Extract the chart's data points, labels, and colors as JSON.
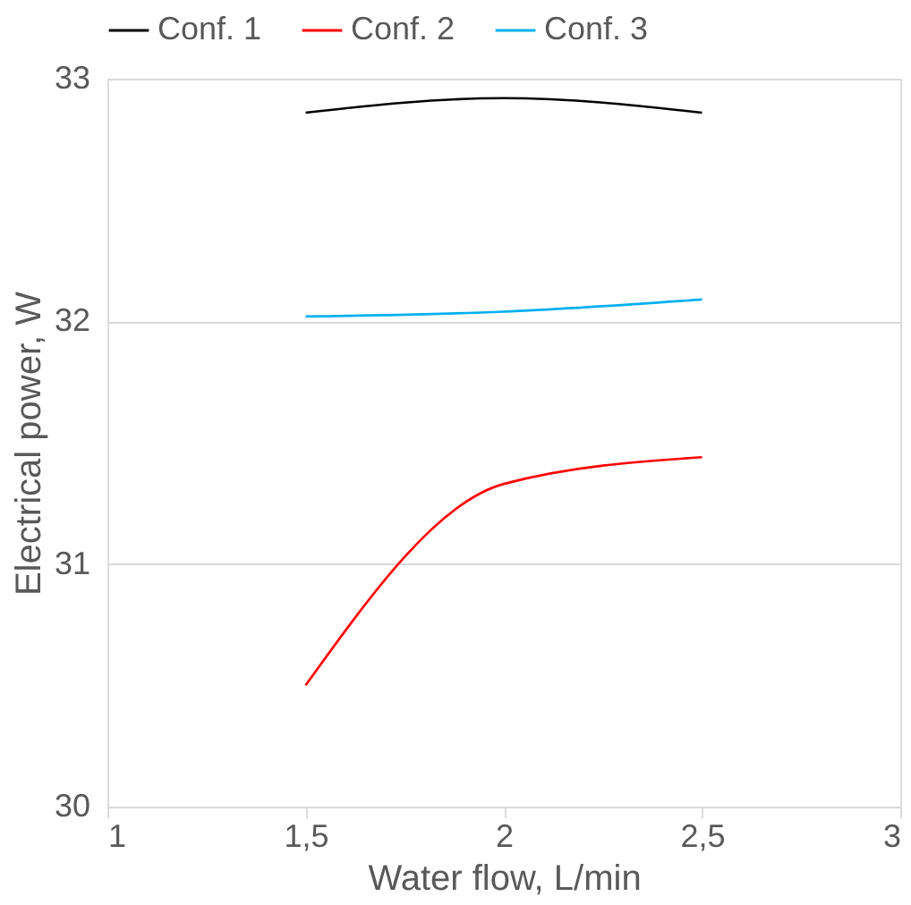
{
  "chart_data": {
    "type": "line",
    "xlabel": "Water flow, L/min",
    "ylabel": "Electrical power, W",
    "x": [
      1.5,
      2,
      2.5
    ],
    "xlim": [
      1,
      3
    ],
    "xticks": [
      1,
      {
        "value": 1.5,
        "label": "1,5"
      },
      2,
      {
        "value": 2.5,
        "label": "2,5"
      },
      3
    ],
    "ylim": [
      30,
      33
    ],
    "yticks": [
      30,
      31,
      32,
      33
    ],
    "grid": "y",
    "legend": "top",
    "marker": "none",
    "line_style": "solid",
    "series": [
      {
        "name": "Conf. 1",
        "color": "#000000",
        "values": [
          32.86,
          32.92,
          32.86
        ]
      },
      {
        "name": "Conf. 2",
        "color": "#ff0000",
        "values": [
          30.5,
          31.33,
          31.44
        ]
      },
      {
        "name": "Conf. 3",
        "color": "#00b0f0",
        "values": [
          32.02,
          32.04,
          32.09
        ]
      }
    ]
  }
}
